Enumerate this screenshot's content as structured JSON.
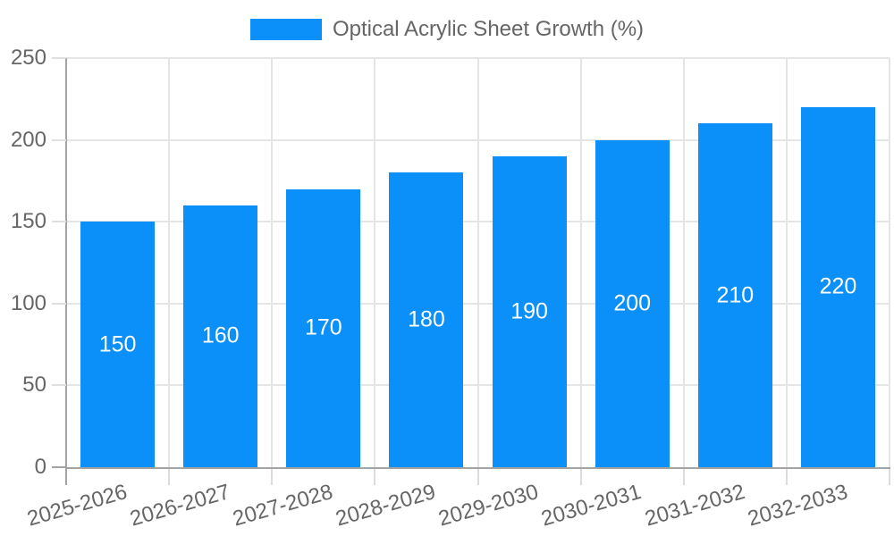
{
  "chart_data": {
    "type": "bar",
    "title": "Optical Acrylic Sheet Growth (%)",
    "series_name": "Optical Acrylic Sheet Growth (%)",
    "categories": [
      "2025-2026",
      "2026-2027",
      "2027-2028",
      "2028-2029",
      "2029-2030",
      "2030-2031",
      "2031-2032",
      "2032-2033"
    ],
    "values": [
      150,
      160,
      170,
      180,
      190,
      200,
      210,
      220
    ],
    "xlabel": "",
    "ylabel": "",
    "ylim": [
      0,
      250
    ],
    "yticks": [
      0,
      50,
      100,
      150,
      200,
      250
    ],
    "grid": true,
    "legend_position": "top",
    "bar_color": "#0b8ff9",
    "data_label_color": "#ffffff",
    "tick_label_color": "#666666",
    "gridline_color": "#e5e5e5",
    "axis_line_color": "#a3a3a3"
  }
}
